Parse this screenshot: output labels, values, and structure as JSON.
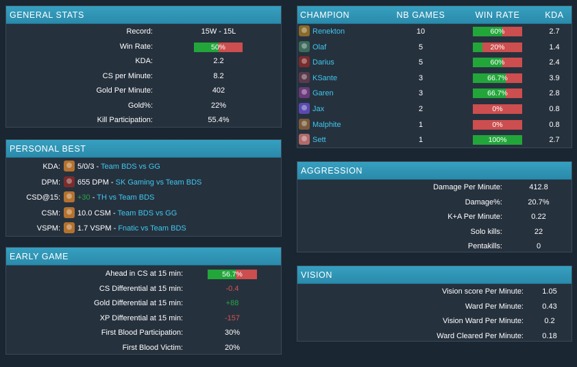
{
  "general_stats": {
    "title": "GENERAL STATS",
    "rows": [
      {
        "label": "Record:",
        "value": "15W - 15L"
      },
      {
        "label": "Win Rate:",
        "value": "50%",
        "bar": 0.5
      },
      {
        "label": "KDA:",
        "value": "2.2"
      },
      {
        "label": "CS per Minute:",
        "value": "8.2"
      },
      {
        "label": "Gold Per Minute:",
        "value": "402"
      },
      {
        "label": "Gold%:",
        "value": "22%"
      },
      {
        "label": "Kill Participation:",
        "value": "55.4%"
      }
    ]
  },
  "personal_best": {
    "title": "PERSONAL BEST",
    "rows": [
      {
        "label": "KDA:",
        "avatar": "gnar-avatar",
        "color": "#b4722e",
        "stat": "5/0/3",
        "stat_color": "",
        "sep": " - ",
        "match": "Team BDS vs GG"
      },
      {
        "label": "DPM:",
        "avatar": "darius-avatar",
        "color": "#7a2c2c",
        "stat": "655 DPM",
        "stat_color": "",
        "sep": " - ",
        "match": "SK Gaming vs Team BDS"
      },
      {
        "label": "CSD@15:",
        "avatar": "gnar-avatar",
        "color": "#b4722e",
        "stat": "+30",
        "stat_color": "#28a745",
        "sep": " - ",
        "match": "TH vs Team BDS"
      },
      {
        "label": "CSM:",
        "avatar": "gnar-avatar",
        "color": "#b4722e",
        "stat": "10.0 CSM",
        "stat_color": "",
        "sep": " - ",
        "match": "Team BDS vs GG"
      },
      {
        "label": "VSPM:",
        "avatar": "gnar-avatar",
        "color": "#b4722e",
        "stat": "1.7 VSPM",
        "stat_color": "",
        "sep": " - ",
        "match": "Fnatic vs Team BDS"
      }
    ]
  },
  "early_game": {
    "title": "EARLY GAME",
    "rows": [
      {
        "label": "Ahead in CS at 15 min:",
        "value": "56.7%",
        "bar": 0.567,
        "cls": ""
      },
      {
        "label": "CS Differential at 15 min:",
        "value": "-0.4",
        "cls": "neg"
      },
      {
        "label": "Gold Differential at 15 min:",
        "value": "+88",
        "cls": "pos"
      },
      {
        "label": "XP Differential at 15 min:",
        "value": "-157",
        "cls": "neg"
      },
      {
        "label": "First Blood Participation:",
        "value": "30%",
        "cls": ""
      },
      {
        "label": "First Blood Victim:",
        "value": "20%",
        "cls": ""
      }
    ]
  },
  "champion": {
    "headers": {
      "champion": "CHAMPION",
      "games": "NB GAMES",
      "winrate": "WIN RATE",
      "kda": "KDA"
    },
    "rows": [
      {
        "name": "Renekton",
        "avatar": "renekton-avatar",
        "color": "#8a6a2a",
        "games": "10",
        "winrate": "60%",
        "wr": 0.6,
        "kda": "2.7"
      },
      {
        "name": "Olaf",
        "avatar": "olaf-avatar",
        "color": "#3d6a5a",
        "games": "5",
        "winrate": "20%",
        "wr": 0.2,
        "kda": "1.4"
      },
      {
        "name": "Darius",
        "avatar": "darius-avatar",
        "color": "#7a2c2c",
        "games": "5",
        "winrate": "60%",
        "wr": 0.6,
        "kda": "2.4"
      },
      {
        "name": "KSante",
        "avatar": "ksante-avatar",
        "color": "#5a3a4a",
        "games": "3",
        "winrate": "66.7%",
        "wr": 0.667,
        "kda": "3.9"
      },
      {
        "name": "Garen",
        "avatar": "garen-avatar",
        "color": "#6a3a7a",
        "games": "3",
        "winrate": "66.7%",
        "wr": 0.667,
        "kda": "2.8"
      },
      {
        "name": "Jax",
        "avatar": "jax-avatar",
        "color": "#5a4ab0",
        "games": "2",
        "winrate": "0%",
        "wr": 0,
        "kda": "0.8"
      },
      {
        "name": "Malphite",
        "avatar": "malphite-avatar",
        "color": "#7a5a3a",
        "games": "1",
        "winrate": "0%",
        "wr": 0,
        "kda": "0.8"
      },
      {
        "name": "Sett",
        "avatar": "sett-avatar",
        "color": "#b06a6a",
        "games": "1",
        "winrate": "100%",
        "wr": 1,
        "kda": "2.7"
      }
    ]
  },
  "aggression": {
    "title": "AGGRESSION",
    "rows": [
      {
        "label": "Damage Per Minute:",
        "value": "412.8"
      },
      {
        "label": "Damage%:",
        "value": "20.7%"
      },
      {
        "label": "K+A Per Minute:",
        "value": "0.22"
      },
      {
        "label": "Solo kills:",
        "value": "22"
      },
      {
        "label": "Pentakills:",
        "value": "0"
      }
    ]
  },
  "vision": {
    "title": "VISION",
    "rows": [
      {
        "label": "Vision score Per Minute:",
        "value": "1.05"
      },
      {
        "label": "Ward Per Minute:",
        "value": "0.43"
      },
      {
        "label": "Vision Ward Per Minute:",
        "value": "0.2"
      },
      {
        "label": "Ward Cleared Per Minute:",
        "value": "0.18"
      }
    ]
  },
  "colors": {
    "bar_green": "#22a63a",
    "bar_red": "#cc4e4e",
    "header": "#2b8aab",
    "link": "#3fc8ee"
  }
}
